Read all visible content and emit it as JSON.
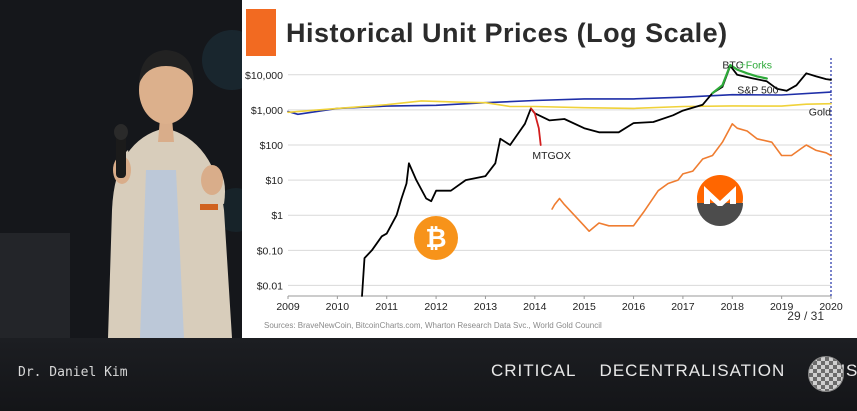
{
  "slide": {
    "title": "Historical Unit Prices (Log Scale)",
    "source": "Sources: BraveNewCoin, BitcoinCharts.com, Wharton Research Data Svc., World Gold Council",
    "page_indicator": "29 / 31"
  },
  "lower_third": {
    "presenter": "Dr. Daniel Kim",
    "event": "CRITICAL DECENTRALISATION CLUSTER"
  },
  "colors": {
    "btc": "#000000",
    "forks": "#2eaa3a",
    "sp500": "#1f2fa8",
    "gold": "#f0d23a",
    "xmr": "#ef7d31",
    "mtgox": "#d21e1e",
    "accent": "#f26a21"
  },
  "icons": [
    "bitcoin-logo",
    "monero-logo"
  ],
  "chart_data": {
    "type": "line",
    "title": "Historical Unit Prices (Log Scale)",
    "yscale": "log",
    "xlim": [
      2009,
      2020
    ],
    "ylim": [
      0.005,
      30000
    ],
    "x_ticks": [
      "2009",
      "2010",
      "2011",
      "2012",
      "2013",
      "2014",
      "2015",
      "2016",
      "2017",
      "2018",
      "2019",
      "2020"
    ],
    "y_ticks": [
      {
        "value": 0.01,
        "label": "$0.01"
      },
      {
        "value": 0.1,
        "label": "$0.10"
      },
      {
        "value": 1,
        "label": "$1"
      },
      {
        "value": 10,
        "label": "$10"
      },
      {
        "value": 100,
        "label": "$100"
      },
      {
        "value": 1000,
        "label": "$1,000"
      },
      {
        "value": 10000,
        "label": "$10,000"
      }
    ],
    "grid": "horizontal",
    "annotations": [
      {
        "text": "BTC",
        "x": 2017.8,
        "y": 15000
      },
      {
        "text": "+Forks",
        "x": 2018.15,
        "y": 15000
      },
      {
        "text": "S&P 500",
        "x": 2018.1,
        "y": 2900
      },
      {
        "text": "Gold",
        "x": 2019.55,
        "y": 700
      },
      {
        "text": "MTGOX",
        "x": 2013.95,
        "y": 40
      }
    ],
    "series": [
      {
        "key": "sp500",
        "x": [
          2009.0,
          2009.2,
          2010.0,
          2011.0,
          2012.0,
          2013.0,
          2014.0,
          2015.0,
          2016.0,
          2017.0,
          2018.0,
          2019.0,
          2020.0
        ],
        "y": [
          900,
          750,
          1100,
          1280,
          1350,
          1600,
          1850,
          2050,
          2050,
          2300,
          2700,
          2650,
          3200
        ]
      },
      {
        "key": "gold",
        "x": [
          2009.0,
          2010.0,
          2011.0,
          2011.7,
          2012.5,
          2013.0,
          2013.5,
          2014.0,
          2015.0,
          2016.0,
          2017.0,
          2018.0,
          2019.0,
          2019.5,
          2020.0
        ],
        "y": [
          850,
          1100,
          1400,
          1800,
          1650,
          1600,
          1250,
          1250,
          1150,
          1100,
          1250,
          1300,
          1280,
          1450,
          1500
        ]
      },
      {
        "key": "btc",
        "x": [
          2010.5,
          2010.55,
          2010.7,
          2010.9,
          2011.0,
          2011.2,
          2011.3,
          2011.4,
          2011.45,
          2011.6,
          2011.8,
          2011.9,
          2012.0,
          2012.3,
          2012.6,
          2013.0,
          2013.2,
          2013.3,
          2013.5,
          2013.8,
          2013.92,
          2014.0,
          2014.3,
          2014.6,
          2015.0,
          2015.3,
          2015.7,
          2016.0,
          2016.4,
          2016.8,
          2017.0,
          2017.4,
          2017.6,
          2017.8,
          2017.96,
          2018.1,
          2018.4,
          2018.7,
          2018.9,
          2019.1,
          2019.3,
          2019.5,
          2019.7,
          2019.9,
          2020.0
        ],
        "y": [
          0.005,
          0.06,
          0.1,
          0.25,
          0.3,
          1,
          3,
          8,
          30,
          10,
          3,
          2.5,
          5,
          5,
          10,
          13,
          30,
          150,
          100,
          400,
          1100,
          800,
          500,
          550,
          300,
          230,
          230,
          420,
          450,
          700,
          950,
          1400,
          3000,
          4500,
          18000,
          10000,
          8000,
          6500,
          4000,
          3500,
          5000,
          11000,
          9000,
          7500,
          7200
        ]
      },
      {
        "key": "mtgox",
        "x": [
          2013.92,
          2014.0,
          2014.08,
          2014.12
        ],
        "y": [
          1100,
          800,
          300,
          100
        ]
      },
      {
        "key": "forks",
        "x": [
          2017.6,
          2017.8,
          2017.96,
          2018.1,
          2018.3,
          2018.5,
          2018.7
        ],
        "y": [
          3000,
          5000,
          19000,
          14000,
          11000,
          9000,
          7800
        ]
      },
      {
        "key": "xmr",
        "x": [
          2014.35,
          2014.4,
          2014.5,
          2014.6,
          2014.8,
          2015.0,
          2015.1,
          2015.3,
          2015.5,
          2015.8,
          2016.0,
          2016.2,
          2016.5,
          2016.7,
          2016.9,
          2017.0,
          2017.2,
          2017.4,
          2017.6,
          2017.8,
          2018.0,
          2018.1,
          2018.3,
          2018.5,
          2018.8,
          2019.0,
          2019.2,
          2019.4,
          2019.5,
          2019.7,
          2019.9,
          2020.0
        ],
        "y": [
          1.5,
          2.0,
          3.0,
          2.0,
          1.0,
          0.5,
          0.35,
          0.6,
          0.5,
          0.5,
          0.5,
          1.2,
          5,
          8,
          10,
          15,
          18,
          40,
          50,
          120,
          400,
          300,
          250,
          150,
          120,
          50,
          50,
          80,
          100,
          70,
          60,
          50
        ]
      }
    ]
  }
}
